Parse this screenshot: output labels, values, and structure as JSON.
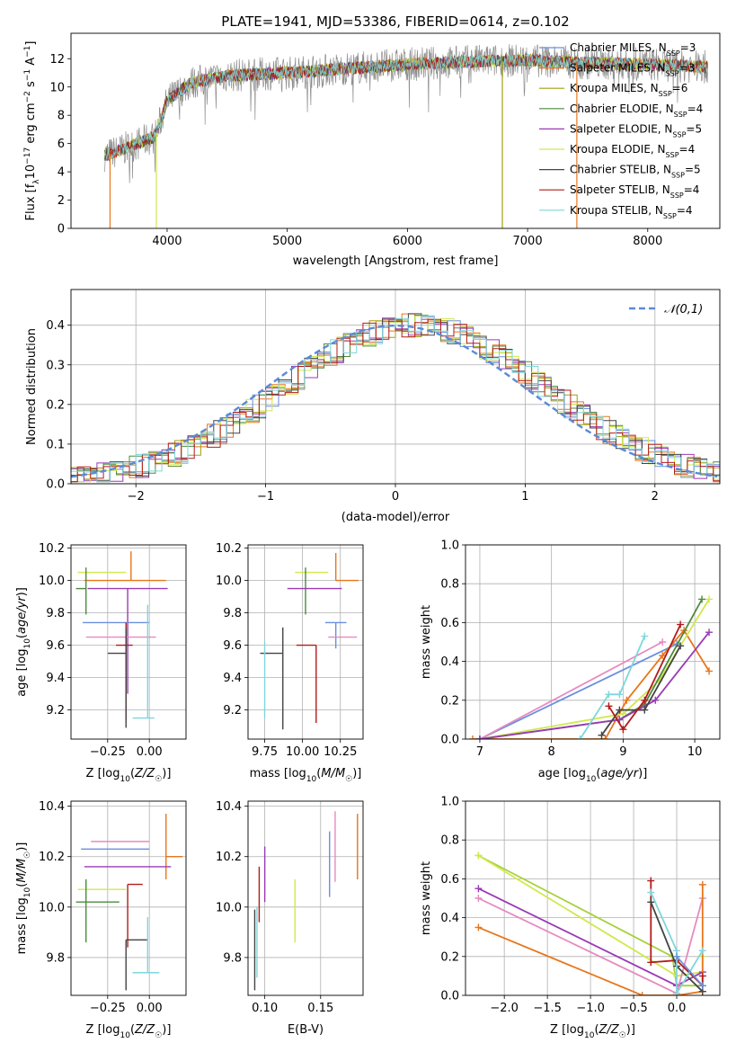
{
  "figure": {
    "title": "PLATE=1941, MJD=53386, FIBERID=0614, z=0.102"
  },
  "colors": {
    "axis": "#000000",
    "grid": "#b0b0b0",
    "models": [
      "#6a8fde",
      "#e8761b",
      "#a0a010",
      "#4d8a3e",
      "#9a3ab5",
      "#d0e84c",
      "#444444",
      "#b31b1b",
      "#7fd6dc"
    ],
    "gauss": "#5b8ad6",
    "pink": "#e68ac0",
    "lime": "#a6d13c"
  },
  "chart_data": [
    {
      "id": "spectrum",
      "type": "line",
      "xlabel": "wavelength [Angstrom, rest frame]",
      "ylabel": "Flux [f_λ 10^-17 erg cm^-2 s^-1 A^-1]",
      "xlim": [
        3200,
        8600
      ],
      "ylim": [
        0,
        13.8
      ],
      "xticks": [
        4000,
        5000,
        6000,
        7000,
        8000
      ],
      "yticks": [
        0,
        2,
        4,
        6,
        8,
        10,
        12
      ],
      "grid": false,
      "legend_position": "top-right",
      "legend": [
        {
          "label": "Chabrier MILES, N",
          "sub": "SSP",
          "eq": "=3"
        },
        {
          "label": "Salpeter MILES, N",
          "sub": "SSP",
          "eq": "=3"
        },
        {
          "label": "Kroupa MILES, N",
          "sub": "SSP",
          "eq": "=6"
        },
        {
          "label": "Chabrier ELODIE, N",
          "sub": "SSP",
          "eq": "=4"
        },
        {
          "label": "Salpeter ELODIE, N",
          "sub": "SSP",
          "eq": "=5"
        },
        {
          "label": "Kroupa ELODIE, N",
          "sub": "SSP",
          "eq": "=4"
        },
        {
          "label": "Chabrier STELIB, N",
          "sub": "SSP",
          "eq": "=5"
        },
        {
          "label": "Salpeter STELIB, N",
          "sub": "SSP",
          "eq": "=4"
        },
        {
          "label": "Kroupa STELIB, N",
          "sub": "SSP",
          "eq": "=4"
        }
      ],
      "continuum": {
        "x": [
          3500,
          3700,
          3900,
          4000,
          4200,
          4500,
          5000,
          5500,
          6000,
          6500,
          7000,
          7500,
          8000,
          8300,
          8500
        ],
        "y": [
          5.2,
          5.8,
          6.5,
          9.0,
          10.3,
          10.8,
          11.0,
          11.3,
          11.6,
          11.8,
          11.9,
          11.7,
          11.6,
          11.5,
          11.4
        ]
      },
      "drops": [
        {
          "x": 3525,
          "y": 0
        },
        {
          "x": 3910,
          "y": 0
        },
        {
          "x": 6790,
          "y": 0
        },
        {
          "x": 7410,
          "y": 0
        }
      ]
    },
    {
      "id": "residuals",
      "type": "histogram",
      "xlabel": "(data-model)/error",
      "ylabel": "Normed distribution",
      "xlim": [
        -2.5,
        2.5
      ],
      "ylim": [
        0,
        0.49
      ],
      "xticks": [
        -2,
        -1,
        0,
        1,
        2
      ],
      "yticks": [
        0.0,
        0.1,
        0.2,
        0.3,
        0.4
      ],
      "grid": true,
      "legend_position": "top-right",
      "gauss_label": "𝒩(0,1)",
      "bin_width": 0.1,
      "jitter": [
        0.012,
        -0.018,
        0.024,
        -0.009,
        0.03,
        -0.022,
        0.016,
        -0.028,
        0.008,
        0.02,
        -0.014,
        0.027,
        -0.006,
        -0.024,
        0.018
      ]
    },
    {
      "id": "age-vs-Z",
      "type": "errorbar",
      "xlabel": "Z [log10(Z/Z☉)]",
      "ylabel": "age [log10(age/yr)]",
      "xlim": [
        -0.47,
        0.22
      ],
      "ylim": [
        9.02,
        10.22
      ],
      "xticks": [
        -0.25,
        0.0
      ],
      "yticks": [
        9.2,
        9.4,
        9.6,
        9.8,
        10.0,
        10.2
      ],
      "grid": true,
      "points": [
        {
          "x": -0.11,
          "y": 10.0,
          "xerr": [
            0.28,
            0.21
          ],
          "yerr": [
            0.0,
            0.18
          ],
          "c": "#e8761b"
        },
        {
          "x": -0.3,
          "y": 10.05,
          "xerr": [
            0.13,
            0.16
          ],
          "yerr": [
            0.0,
            0.0
          ],
          "c": "#d0e84c"
        },
        {
          "x": -0.38,
          "y": 9.95,
          "xerr": [
            0.06,
            0.0
          ],
          "yerr": [
            0.16,
            0.13
          ],
          "c": "#4d8a3e"
        },
        {
          "x": -0.13,
          "y": 9.95,
          "xerr": [
            0.24,
            0.24
          ],
          "yerr": [
            0.65,
            0.0
          ],
          "c": "#9a3ab5"
        },
        {
          "x": -0.22,
          "y": 9.74,
          "xerr": [
            0.18,
            0.22
          ],
          "yerr": [
            0.0,
            0.0
          ],
          "c": "#6a8fde"
        },
        {
          "x": -0.1,
          "y": 9.65,
          "xerr": [
            0.28,
            0.14
          ],
          "yerr": [
            0.0,
            0.0
          ],
          "c": "#e68ac0"
        },
        {
          "x": -0.14,
          "y": 9.6,
          "xerr": [
            0.06,
            0.04
          ],
          "yerr": [
            0.46,
            0.14
          ],
          "c": "#b31b1b"
        },
        {
          "x": -0.14,
          "y": 9.55,
          "xerr": [
            0.11,
            0.0
          ],
          "yerr": [
            0.46,
            0.16
          ],
          "c": "#444444"
        },
        {
          "x": -0.01,
          "y": 9.15,
          "xerr": [
            0.09,
            0.04
          ],
          "yerr": [
            0.0,
            0.7
          ],
          "c": "#7fd6dc"
        }
      ]
    },
    {
      "id": "age-vs-mass",
      "type": "errorbar",
      "xlabel": "mass [log10(M/M☉)]",
      "ylabel": "",
      "xlim": [
        9.64,
        10.4
      ],
      "ylim": [
        9.02,
        10.22
      ],
      "xticks": [
        9.75,
        10.0,
        10.25
      ],
      "yticks": [
        9.2,
        9.4,
        9.6,
        9.8,
        10.0,
        10.2
      ],
      "grid": true,
      "points": [
        {
          "x": 10.22,
          "y": 10.0,
          "xerr": [
            0.0,
            0.15
          ],
          "yerr": [
            0.0,
            0.17
          ],
          "c": "#e8761b"
        },
        {
          "x": 10.07,
          "y": 10.05,
          "xerr": [
            0.12,
            0.1
          ],
          "yerr": [
            0.0,
            0.0
          ],
          "c": "#d0e84c"
        },
        {
          "x": 10.02,
          "y": 9.95,
          "xerr": [
            0.0,
            0.0
          ],
          "yerr": [
            0.16,
            0.13
          ],
          "c": "#4d8a3e"
        },
        {
          "x": 10.16,
          "y": 9.95,
          "xerr": [
            0.26,
            0.1
          ],
          "yerr": [
            0.0,
            0.0
          ],
          "c": "#9a3ab5"
        },
        {
          "x": 10.22,
          "y": 9.74,
          "xerr": [
            0.07,
            0.07
          ],
          "yerr": [
            0.16,
            0.0
          ],
          "c": "#6a8fde"
        },
        {
          "x": 10.26,
          "y": 9.65,
          "xerr": [
            0.09,
            0.1
          ],
          "yerr": [
            0.0,
            0.0
          ],
          "c": "#e68ac0"
        },
        {
          "x": 10.09,
          "y": 9.6,
          "xerr": [
            0.13,
            0.0
          ],
          "yerr": [
            0.48,
            0.0
          ],
          "c": "#b31b1b"
        },
        {
          "x": 9.87,
          "y": 9.55,
          "xerr": [
            0.15,
            0.0
          ],
          "yerr": [
            0.47,
            0.16
          ],
          "c": "#444444"
        },
        {
          "x": 9.75,
          "y": 9.15,
          "xerr": [
            0.0,
            0.0
          ],
          "yerr": [
            0.0,
            0.47
          ],
          "c": "#7fd6dc"
        }
      ]
    },
    {
      "id": "mass-weight-vs-age",
      "type": "line",
      "xlabel": "age [log10(age/yr)]",
      "ylabel": "mass weight",
      "xlim": [
        6.8,
        10.35
      ],
      "ylim": [
        0,
        1.0
      ],
      "xticks": [
        7,
        8,
        9,
        10
      ],
      "yticks": [
        0.0,
        0.2,
        0.4,
        0.6,
        0.8,
        1.0
      ],
      "grid": true,
      "series": [
        {
          "c": "#6a8fde",
          "x": [
            7.0,
            9.75
          ],
          "y": [
            0.0,
            0.49
          ]
        },
        {
          "c": "#e68ac0",
          "x": [
            7.0,
            9.55
          ],
          "y": [
            0.0,
            0.5
          ]
        },
        {
          "c": "#e8761b",
          "x": [
            6.9,
            8.75,
            9.05,
            9.55,
            9.85,
            10.2
          ],
          "y": [
            0.0,
            0.0,
            0.2,
            0.43,
            0.56,
            0.35
          ]
        },
        {
          "c": "#d0e84c",
          "x": [
            7.0,
            9.0,
            9.5,
            10.2
          ],
          "y": [
            0.0,
            0.13,
            0.3,
            0.72
          ]
        },
        {
          "c": "#4d8a3e",
          "x": [
            7.0,
            8.95,
            9.3,
            10.1
          ],
          "y": [
            0.0,
            0.1,
            0.18,
            0.72
          ]
        },
        {
          "c": "#9a3ab5",
          "x": [
            7.0,
            8.95,
            9.45,
            10.2
          ],
          "y": [
            0.0,
            0.1,
            0.2,
            0.55
          ]
        },
        {
          "c": "#444444",
          "x": [
            8.7,
            8.95,
            9.3,
            9.8
          ],
          "y": [
            0.02,
            0.15,
            0.15,
            0.48
          ]
        },
        {
          "c": "#b31b1b",
          "x": [
            8.8,
            9.0,
            9.3,
            9.8
          ],
          "y": [
            0.17,
            0.05,
            0.2,
            0.59
          ]
        },
        {
          "c": "#7fd6dc",
          "x": [
            8.4,
            8.8,
            8.95,
            9.3
          ],
          "y": [
            0.0,
            0.23,
            0.23,
            0.53
          ]
        }
      ]
    },
    {
      "id": "mass-vs-Z",
      "type": "errorbar",
      "xlabel": "Z [log10(Z/Z☉)]",
      "ylabel": "mass [log10(M/M☉)]",
      "xlim": [
        -0.47,
        0.22
      ],
      "ylim": [
        9.65,
        10.42
      ],
      "xticks": [
        -0.25,
        0.0
      ],
      "yticks": [
        9.8,
        10.0,
        10.2,
        10.4
      ],
      "grid": true,
      "points": [
        {
          "x": 0.1,
          "y": 10.2,
          "xerr": [
            0.0,
            0.1
          ],
          "yerr": [
            0.09,
            0.17
          ],
          "c": "#e8761b"
        },
        {
          "x": -0.07,
          "y": 10.26,
          "xerr": [
            0.28,
            0.07
          ],
          "yerr": [
            0.0,
            0.0
          ],
          "c": "#e68ac0"
        },
        {
          "x": -0.19,
          "y": 10.23,
          "xerr": [
            0.22,
            0.19
          ],
          "yerr": [
            0.0,
            0.0
          ],
          "c": "#6a8fde"
        },
        {
          "x": -0.13,
          "y": 10.16,
          "xerr": [
            0.26,
            0.26
          ],
          "yerr": [
            0.0,
            0.0
          ],
          "c": "#9a3ab5"
        },
        {
          "x": -0.13,
          "y": 10.09,
          "xerr": [
            0.0,
            0.09
          ],
          "yerr": [
            0.25,
            0.0
          ],
          "c": "#b31b1b"
        },
        {
          "x": -0.3,
          "y": 10.07,
          "xerr": [
            0.13,
            0.16
          ],
          "yerr": [
            0.0,
            0.0
          ],
          "c": "#d0e84c"
        },
        {
          "x": -0.38,
          "y": 10.02,
          "xerr": [
            0.06,
            0.2
          ],
          "yerr": [
            0.16,
            0.09
          ],
          "c": "#4d8a3e"
        },
        {
          "x": -0.14,
          "y": 9.87,
          "xerr": [
            0.0,
            0.13
          ],
          "yerr": [
            0.2,
            0.0
          ],
          "c": "#444444"
        },
        {
          "x": -0.01,
          "y": 9.74,
          "xerr": [
            0.09,
            0.07
          ],
          "yerr": [
            0.0,
            0.22
          ],
          "c": "#7fd6dc"
        }
      ]
    },
    {
      "id": "mass-vs-EBV",
      "type": "errorbar",
      "xlabel": "E(B-V)",
      "ylabel": "",
      "xlim": [
        0.085,
        0.188
      ],
      "ylim": [
        9.65,
        10.42
      ],
      "xticks": [
        0.1,
        0.15
      ],
      "yticks": [
        9.8,
        10.0,
        10.2,
        10.4
      ],
      "grid": true,
      "points": [
        {
          "x": 0.091,
          "y": 9.87,
          "xerr": [
            0.0,
            0.0
          ],
          "yerr": [
            0.2,
            0.12
          ],
          "c": "#444444"
        },
        {
          "x": 0.093,
          "y": 9.9,
          "xerr": [
            0.0,
            0.0
          ],
          "yerr": [
            0.18,
            0.1
          ],
          "c": "#7fd6dc"
        },
        {
          "x": 0.095,
          "y": 10.0,
          "xerr": [
            0.0,
            0.0
          ],
          "yerr": [
            0.06,
            0.16
          ],
          "c": "#b31b1b"
        },
        {
          "x": 0.1,
          "y": 10.12,
          "xerr": [
            0.0,
            0.0
          ],
          "yerr": [
            0.1,
            0.12
          ],
          "c": "#9a3ab5"
        },
        {
          "x": 0.127,
          "y": 9.99,
          "xerr": [
            0.0,
            0.0
          ],
          "yerr": [
            0.13,
            0.12
          ],
          "c": "#d0e84c"
        },
        {
          "x": 0.158,
          "y": 10.15,
          "xerr": [
            0.0,
            0.0
          ],
          "yerr": [
            0.11,
            0.15
          ],
          "c": "#6a8fde"
        },
        {
          "x": 0.163,
          "y": 10.24,
          "xerr": [
            0.0,
            0.0
          ],
          "yerr": [
            0.14,
            0.14
          ],
          "c": "#e68ac0"
        },
        {
          "x": 0.183,
          "y": 10.24,
          "xerr": [
            0.0,
            0.0
          ],
          "yerr": [
            0.13,
            0.13
          ],
          "c": "#e8761b"
        }
      ]
    },
    {
      "id": "mass-weight-vs-Z",
      "type": "line",
      "xlabel": "Z [log10(Z/Z☉)]",
      "ylabel": "mass weight",
      "xlim": [
        -2.45,
        0.5
      ],
      "ylim": [
        0,
        1.0
      ],
      "xticks": [
        -2.0,
        -1.5,
        -1.0,
        -0.5,
        0.0
      ],
      "yticks": [
        0.0,
        0.2,
        0.4,
        0.6,
        0.8,
        1.0
      ],
      "grid": true,
      "series": [
        {
          "c": "#a6d13c",
          "x": [
            -2.3,
            -0.05,
            0.0,
            0.3
          ],
          "y": [
            0.72,
            0.2,
            0.05,
            0.05
          ]
        },
        {
          "c": "#d0e84c",
          "x": [
            -2.3,
            0.0,
            0.3,
            0.3
          ],
          "y": [
            0.72,
            0.1,
            0.12,
            0.2
          ]
        },
        {
          "c": "#9a3ab5",
          "x": [
            -2.3,
            0.0,
            0.3
          ],
          "y": [
            0.55,
            0.05,
            0.12
          ]
        },
        {
          "c": "#e68ac0",
          "x": [
            -2.3,
            0.0,
            0.3
          ],
          "y": [
            0.5,
            0.01,
            0.5
          ]
        },
        {
          "c": "#e8761b",
          "x": [
            -2.3,
            -0.4,
            0.0,
            0.3,
            0.3
          ],
          "y": [
            0.35,
            0.0,
            0.0,
            0.02,
            0.57
          ]
        },
        {
          "c": "#b31b1b",
          "x": [
            -0.3,
            -0.3,
            0.0,
            0.3,
            0.3
          ],
          "y": [
            0.59,
            0.17,
            0.18,
            0.05,
            0.1
          ]
        },
        {
          "c": "#444444",
          "x": [
            -0.3,
            0.0,
            0.3
          ],
          "y": [
            0.48,
            0.15,
            0.02
          ]
        },
        {
          "c": "#7fd6dc",
          "x": [
            -0.3,
            0.0,
            0.0,
            0.3
          ],
          "y": [
            0.53,
            0.23,
            0.01,
            0.23
          ]
        },
        {
          "c": "#6a8fde",
          "x": [
            0.0,
            0.3
          ],
          "y": [
            0.2,
            0.05
          ]
        }
      ]
    }
  ]
}
